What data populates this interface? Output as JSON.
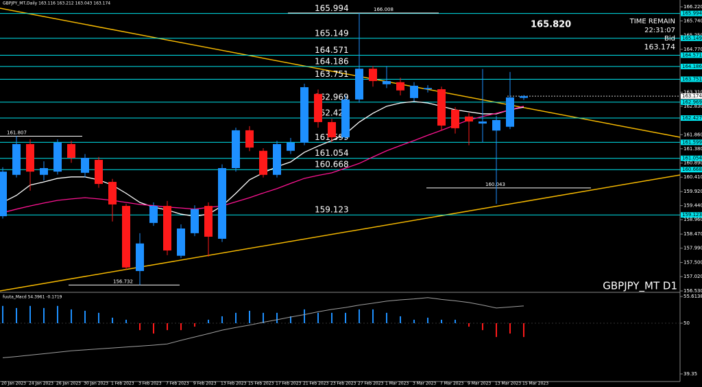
{
  "header": "GBPJPY_MT,Daily  163.116 163.212 163.043 163.174",
  "info": {
    "big": "165.820",
    "time_label": "TIME REMAIN",
    "time": "22:31:07",
    "bid_label": "Bid",
    "bid": 163.174
  },
  "chart_data": [
    {
      "type": "candlestick",
      "symbol": "GBPJPY_MT D1",
      "categories": [
        "20 Jan 2023",
        null,
        "24 Jan 2023",
        null,
        "26 Jan 2023",
        null,
        "30 Jan 2023",
        null,
        "1 Feb 2023",
        null,
        "3 Feb 2023",
        null,
        "7 Feb 2023",
        null,
        "9 Feb 2023",
        null,
        "13 Feb 2023",
        null,
        "15 Feb 2023",
        null,
        "17 Feb 2023",
        null,
        "21 Feb 2023",
        null,
        "23 Feb 2023",
        null,
        "27 Feb 2023",
        null,
        "1 Mar 2023",
        null,
        "3 Mar 2023",
        null,
        "7 Mar 2023",
        null,
        "9 Mar 2023",
        null,
        "13 Mar 2023",
        null,
        "15 Mar 2023"
      ],
      "open": [
        159.08,
        160.49,
        161.54,
        160.49,
        160.6,
        161.54,
        160.56,
        161.0,
        160.25,
        159.43,
        157.21,
        158.85,
        159.43,
        157.73,
        158.5,
        159.43,
        158.31,
        160.72,
        162.01,
        161.31,
        160.49,
        161.31,
        161.59,
        163.25,
        162.29,
        161.77,
        163.06,
        164.11,
        163.58,
        163.65,
        163.11,
        163.41,
        163.41,
        162.71,
        162.48,
        162.24,
        162.0,
        162.13,
        163.116
      ],
      "high": [
        160.75,
        161.81,
        161.7,
        160.95,
        161.7,
        161.65,
        161.2,
        161.1,
        160.35,
        159.5,
        158.5,
        159.55,
        159.6,
        158.8,
        159.45,
        159.55,
        160.85,
        162.1,
        162.15,
        161.4,
        161.65,
        161.75,
        163.6,
        163.4,
        162.4,
        163.2,
        166.008,
        164.2,
        164.2,
        163.8,
        163.65,
        163.55,
        163.5,
        162.8,
        162.6,
        164.1,
        162.5,
        164.0,
        163.212
      ],
      "low": [
        159.0,
        160.4,
        159.95,
        160.3,
        160.5,
        160.9,
        160.4,
        160.05,
        158.9,
        157.25,
        156.732,
        158.75,
        157.75,
        157.65,
        158.4,
        157.7,
        158.2,
        160.6,
        161.3,
        160.4,
        160.4,
        161.2,
        161.5,
        162.1,
        161.6,
        161.7,
        162.95,
        163.5,
        163.45,
        163.2,
        163.0,
        163.3,
        162.0,
        161.9,
        161.5,
        161.6,
        159.5,
        162.05,
        163.043
      ],
      "close": [
        160.6,
        161.54,
        160.6,
        160.72,
        161.59,
        161.07,
        161.07,
        160.18,
        159.48,
        157.33,
        158.15,
        159.43,
        157.91,
        158.66,
        159.32,
        158.38,
        160.72,
        162.01,
        161.42,
        160.49,
        161.54,
        161.59,
        163.48,
        162.29,
        161.77,
        163.06,
        164.11,
        163.69,
        163.69,
        163.37,
        163.53,
        163.45,
        162.17,
        162.08,
        162.31,
        162.31,
        162.36,
        163.13,
        163.174
      ],
      "up_color": "#1e90ff",
      "down_color": "#ff1a1a",
      "overlays": [
        {
          "color": "#ffffff",
          "values": [
            159.55,
            159.79,
            160.14,
            160.25,
            160.37,
            160.42,
            160.42,
            160.32,
            160.14,
            159.86,
            159.55,
            159.39,
            159.29,
            159.15,
            159.08,
            159.15,
            159.43,
            159.86,
            160.32,
            160.56,
            160.77,
            160.93,
            161.26,
            161.47,
            161.66,
            161.89,
            162.29,
            162.59,
            162.83,
            162.94,
            162.99,
            162.94,
            162.83,
            162.71,
            162.64,
            162.57,
            162.57,
            162.71,
            162.8
          ]
        },
        {
          "color": "#ff1493",
          "values": [
            159.2,
            159.32,
            159.43,
            159.53,
            159.62,
            159.67,
            159.71,
            159.67,
            159.62,
            159.55,
            159.48,
            159.44,
            159.39,
            159.36,
            159.32,
            159.38,
            159.43,
            159.57,
            159.71,
            159.87,
            160.02,
            160.2,
            160.37,
            160.47,
            160.56,
            160.72,
            160.88,
            161.1,
            161.31,
            161.49,
            161.66,
            161.84,
            162.01,
            162.19,
            162.36,
            162.48,
            162.59,
            162.71,
            162.83
          ]
        }
      ],
      "ylim": [
        156.507,
        166.454
      ],
      "yticks": [
        {
          "value": 166.22,
          "label": "166.220"
        },
        {
          "value": 165.74,
          "label": "165.740"
        },
        {
          "value": 165.25,
          "label": "165.250"
        },
        {
          "value": 164.77,
          "label": "164.770"
        },
        {
          "value": 163.31,
          "label": "163.310"
        },
        {
          "value": 162.83,
          "label": "162.830"
        },
        {
          "value": 161.86,
          "label": "161.860"
        },
        {
          "value": 161.38,
          "label": "161.380"
        },
        {
          "value": 160.89,
          "label": "160.890"
        },
        {
          "value": 160.41,
          "label": "160.410"
        },
        {
          "value": 159.92,
          "label": "159.920"
        },
        {
          "value": 159.44,
          "label": "159.440"
        },
        {
          "value": 158.96,
          "label": "158.960"
        },
        {
          "value": 158.47,
          "label": "158.470"
        },
        {
          "value": 157.99,
          "label": "157.990"
        },
        {
          "value": 157.5,
          "label": "157.500"
        },
        {
          "value": 157.02,
          "label": "157.020"
        },
        {
          "value": 156.53,
          "label": "156.530"
        }
      ],
      "levels": [
        165.994,
        165.149,
        164.571,
        164.186,
        163.751,
        162.969,
        162.427,
        161.599,
        161.054,
        160.668,
        159.123
      ],
      "level_color": "#00e5ee",
      "bid_level": 163.174,
      "markers": [
        166.008,
        161.807,
        156.732,
        160.043
      ]
    },
    {
      "type": "macd",
      "title": "fuuta_Macd 54.3961 -0.1719",
      "values": [
        53.63,
        53.19,
        53.63,
        53.19,
        53.63,
        52.9,
        52.61,
        52.18,
        51.16,
        50.73,
        48.55,
        47.83,
        48.55,
        48.55,
        49.28,
        50.73,
        51.45,
        52.18,
        52.61,
        52.18,
        52.18,
        51.45,
        52.9,
        52.18,
        52.18,
        52.18,
        52.9,
        52.9,
        52.18,
        51.45,
        50.73,
        51.16,
        50.73,
        50.73,
        49.28,
        48.55,
        47.1,
        47.83,
        47.1
      ],
      "signal": [
        42.75,
        43.0,
        43.3,
        43.6,
        43.9,
        44.2,
        44.4,
        44.6,
        44.8,
        45.0,
        45.2,
        45.4,
        45.65,
        46.4,
        47.1,
        47.8,
        48.55,
        49.1,
        49.6,
        50.2,
        50.73,
        51.3,
        51.8,
        52.4,
        52.9,
        53.3,
        53.8,
        54.2,
        54.64,
        54.9,
        55.1,
        55.37,
        55.0,
        54.7,
        54.35,
        53.8,
        53.19,
        53.4,
        53.63
      ],
      "baseline": 50,
      "up_color": "#1e90ff",
      "down_color": "#ff1a1a",
      "signal_color": "#a0a0a0",
      "ylim": [
        37.9,
        56.2
      ],
      "yticks": [
        55.6138,
        50,
        39.35
      ]
    }
  ]
}
